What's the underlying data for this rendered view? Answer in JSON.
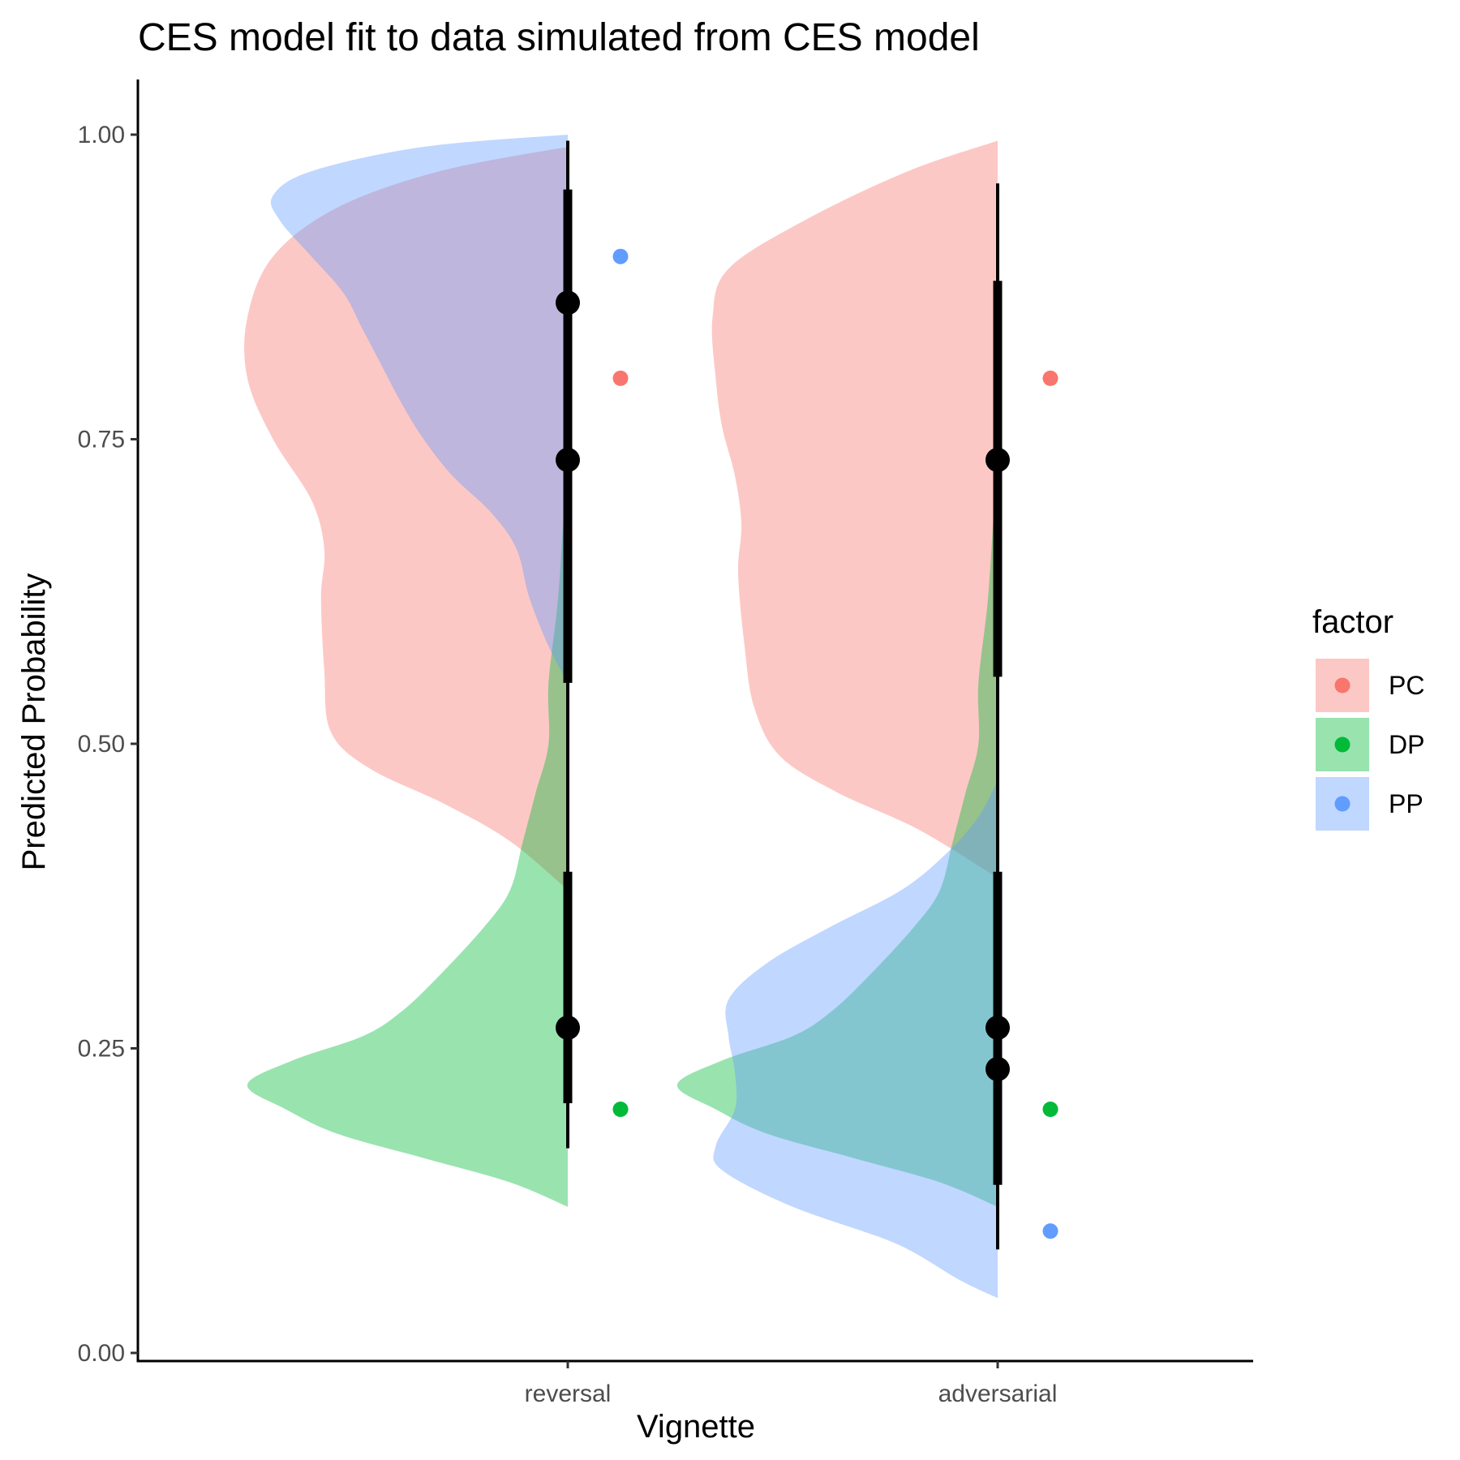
{
  "chart_data": {
    "type": "violin",
    "title": "CES model fit to data simulated from CES model",
    "xlabel": "Vignette",
    "ylabel": "Predicted Probability",
    "categories": [
      "reversal",
      "adversarial"
    ],
    "ylim": [
      0,
      1.05
    ],
    "yticks": [
      "0.00",
      "0.25",
      "0.50",
      "0.75",
      "1.00"
    ],
    "grid": false,
    "legend": {
      "title": "factor",
      "position": "right",
      "items": [
        {
          "key": "PC",
          "label": "PC"
        },
        {
          "key": "DP",
          "label": "DP"
        },
        {
          "key": "PP",
          "label": "PP"
        }
      ]
    },
    "colors": {
      "PC": "#F8766D",
      "DP": "#00BA38",
      "PP": "#619CFF"
    },
    "series": [
      {
        "name": "PC",
        "densities": [
          {
            "category": "reversal",
            "range": [
              0.38,
              0.99
            ],
            "profile": [
              [
                0.38,
                0.0
              ],
              [
                0.42,
                0.18
              ],
              [
                0.45,
                0.38
              ],
              [
                0.48,
                0.62
              ],
              [
                0.51,
                0.74
              ],
              [
                0.56,
                0.76
              ],
              [
                0.62,
                0.77
              ],
              [
                0.66,
                0.76
              ],
              [
                0.7,
                0.8
              ],
              [
                0.75,
                0.92
              ],
              [
                0.8,
                1.0
              ],
              [
                0.85,
                1.0
              ],
              [
                0.9,
                0.92
              ],
              [
                0.94,
                0.72
              ],
              [
                0.97,
                0.4
              ],
              [
                0.99,
                0.0
              ]
            ]
          },
          {
            "category": "adversarial",
            "range": [
              0.39,
              0.995
            ],
            "profile": [
              [
                0.39,
                0.0
              ],
              [
                0.43,
                0.25
              ],
              [
                0.46,
                0.5
              ],
              [
                0.49,
                0.68
              ],
              [
                0.53,
                0.76
              ],
              [
                0.58,
                0.79
              ],
              [
                0.64,
                0.81
              ],
              [
                0.68,
                0.8
              ],
              [
                0.72,
                0.82
              ],
              [
                0.76,
                0.86
              ],
              [
                0.8,
                0.88
              ],
              [
                0.85,
                0.89
              ],
              [
                0.89,
                0.84
              ],
              [
                0.93,
                0.6
              ],
              [
                0.97,
                0.28
              ],
              [
                0.995,
                0.0
              ]
            ]
          }
        ],
        "intervals": [
          {
            "category": "reversal",
            "median": 0.733,
            "inner": [
              0.555,
              0.88
            ],
            "outer": [
              0.38,
              0.99
            ]
          },
          {
            "category": "adversarial",
            "median": 0.733,
            "inner": [
              0.555,
              0.88
            ],
            "outer": [
              0.38,
              0.96
            ]
          }
        ],
        "true_values": [
          {
            "category": "reversal",
            "value": 0.8
          },
          {
            "category": "adversarial",
            "value": 0.8
          }
        ]
      },
      {
        "name": "DP",
        "densities": [
          {
            "category": "reversal",
            "range": [
              0.12,
              0.73
            ],
            "profile": [
              [
                0.12,
                0.0
              ],
              [
                0.14,
                0.18
              ],
              [
                0.16,
                0.45
              ],
              [
                0.18,
                0.72
              ],
              [
                0.2,
                0.88
              ],
              [
                0.22,
                1.0
              ],
              [
                0.24,
                0.86
              ],
              [
                0.26,
                0.64
              ],
              [
                0.28,
                0.52
              ],
              [
                0.31,
                0.4
              ],
              [
                0.35,
                0.26
              ],
              [
                0.38,
                0.18
              ],
              [
                0.42,
                0.14
              ],
              [
                0.46,
                0.1
              ],
              [
                0.5,
                0.06
              ],
              [
                0.55,
                0.06
              ],
              [
                0.62,
                0.03
              ],
              [
                0.7,
                0.01
              ],
              [
                0.73,
                0.0
              ]
            ]
          },
          {
            "category": "adversarial",
            "range": [
              0.12,
              0.73
            ],
            "profile": [
              [
                0.12,
                0.0
              ],
              [
                0.14,
                0.18
              ],
              [
                0.16,
                0.45
              ],
              [
                0.18,
                0.72
              ],
              [
                0.2,
                0.88
              ],
              [
                0.22,
                1.0
              ],
              [
                0.24,
                0.86
              ],
              [
                0.26,
                0.64
              ],
              [
                0.28,
                0.52
              ],
              [
                0.31,
                0.4
              ],
              [
                0.35,
                0.26
              ],
              [
                0.38,
                0.18
              ],
              [
                0.42,
                0.14
              ],
              [
                0.46,
                0.1
              ],
              [
                0.5,
                0.06
              ],
              [
                0.55,
                0.06
              ],
              [
                0.62,
                0.03
              ],
              [
                0.7,
                0.01
              ],
              [
                0.73,
                0.0
              ]
            ]
          }
        ],
        "intervals": [
          {
            "category": "reversal",
            "median": 0.267,
            "inner": [
              0.205,
              0.395
            ],
            "outer": [
              0.168,
              0.45
            ]
          },
          {
            "category": "adversarial",
            "median": 0.267,
            "inner": [
              0.205,
              0.395
            ],
            "outer": [
              0.168,
              0.45
            ]
          }
        ],
        "true_values": [
          {
            "category": "reversal",
            "value": 0.2
          },
          {
            "category": "adversarial",
            "value": 0.2
          }
        ]
      },
      {
        "name": "PP",
        "densities": [
          {
            "category": "reversal",
            "range": [
              0.55,
              1.0
            ],
            "profile": [
              [
                0.55,
                0.0
              ],
              [
                0.58,
                0.06
              ],
              [
                0.62,
                0.12
              ],
              [
                0.66,
                0.16
              ],
              [
                0.69,
                0.24
              ],
              [
                0.72,
                0.36
              ],
              [
                0.75,
                0.45
              ],
              [
                0.78,
                0.52
              ],
              [
                0.81,
                0.58
              ],
              [
                0.84,
                0.64
              ],
              [
                0.87,
                0.7
              ],
              [
                0.9,
                0.8
              ],
              [
                0.93,
                0.9
              ],
              [
                0.95,
                0.92
              ],
              [
                0.97,
                0.8
              ],
              [
                0.99,
                0.45
              ],
              [
                1.0,
                0.0
              ]
            ]
          },
          {
            "category": "adversarial",
            "range": [
              0.045,
              0.47
            ],
            "profile": [
              [
                0.045,
                0.0
              ],
              [
                0.06,
                0.12
              ],
              [
                0.09,
                0.32
              ],
              [
                0.12,
                0.64
              ],
              [
                0.15,
                0.86
              ],
              [
                0.17,
                0.88
              ],
              [
                0.2,
                0.82
              ],
              [
                0.23,
                0.82
              ],
              [
                0.26,
                0.84
              ],
              [
                0.29,
                0.84
              ],
              [
                0.32,
                0.72
              ],
              [
                0.35,
                0.52
              ],
              [
                0.38,
                0.3
              ],
              [
                0.41,
                0.16
              ],
              [
                0.44,
                0.06
              ],
              [
                0.47,
                0.0
              ]
            ]
          }
        ],
        "intervals": [
          {
            "category": "reversal",
            "median": 0.862,
            "inner": [
              0.55,
              0.955
            ],
            "outer": [
              0.45,
              0.995
            ]
          },
          {
            "category": "adversarial",
            "median": 0.233,
            "inner": [
              0.138,
              0.335
            ],
            "outer": [
              0.085,
              0.45
            ]
          }
        ],
        "true_values": [
          {
            "category": "reversal",
            "value": 0.9
          },
          {
            "category": "adversarial",
            "value": 0.1
          }
        ]
      }
    ]
  }
}
